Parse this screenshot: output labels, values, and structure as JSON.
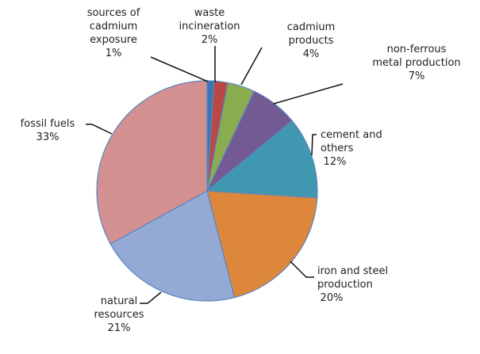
{
  "chart_data": {
    "type": "pie",
    "title": "",
    "start": "top",
    "direction": "clockwise",
    "slices": [
      {
        "label": [
          "sources of",
          "cadmium",
          "exposure"
        ],
        "value": 1,
        "pct": "1%",
        "color": "#3a74b4"
      },
      {
        "label": [
          "waste",
          "incineration"
        ],
        "value": 2,
        "pct": "2%",
        "color": "#b84745"
      },
      {
        "label": [
          "cadmium",
          "products"
        ],
        "value": 4,
        "pct": "4%",
        "color": "#8aac4f"
      },
      {
        "label": [
          "non-ferrous",
          "metal production"
        ],
        "value": 7,
        "pct": "7%",
        "color": "#735a93"
      },
      {
        "label": [
          "cement and",
          "others"
        ],
        "value": 12,
        "pct": "12%",
        "color": "#3f98b0"
      },
      {
        "label": [
          "iron and steel",
          "production"
        ],
        "value": 20,
        "pct": "20%",
        "color": "#dc873c"
      },
      {
        "label": [
          "natural",
          "resources"
        ],
        "value": 21,
        "pct": "21%",
        "color": "#94aad4"
      },
      {
        "label": [
          "fossil fuels"
        ],
        "value": 33,
        "pct": "33%",
        "color": "#d39090"
      }
    ],
    "legend": "none"
  }
}
